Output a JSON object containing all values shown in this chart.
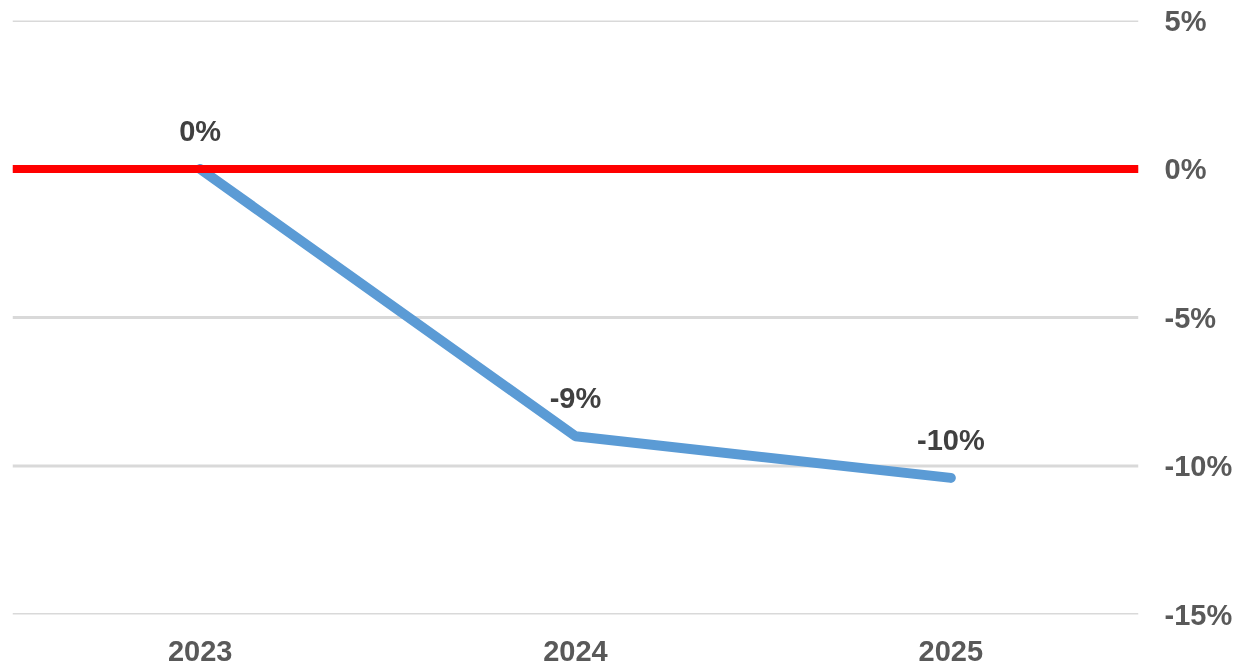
{
  "chart_data": {
    "type": "line",
    "categories": [
      "2023",
      "2024",
      "2025"
    ],
    "series": [
      {
        "color": "#5b9bd5",
        "values": [
          0,
          -9,
          -10.4
        ],
        "value_labels": [
          "0%",
          "-9%",
          "-10%"
        ]
      }
    ],
    "ylim": [
      -15,
      5
    ],
    "yticks": [
      {
        "value": 5,
        "label": "5%"
      },
      {
        "value": 0,
        "label": "0%"
      },
      {
        "value": -5,
        "label": "-5%"
      },
      {
        "value": -10,
        "label": "-10%"
      },
      {
        "value": -15,
        "label": "-15%"
      }
    ],
    "grid": "y",
    "marker": "none",
    "line_style": "solid",
    "ref_lines": [
      {
        "axis": "y",
        "value": 0,
        "color": "#ff0000"
      }
    ]
  }
}
